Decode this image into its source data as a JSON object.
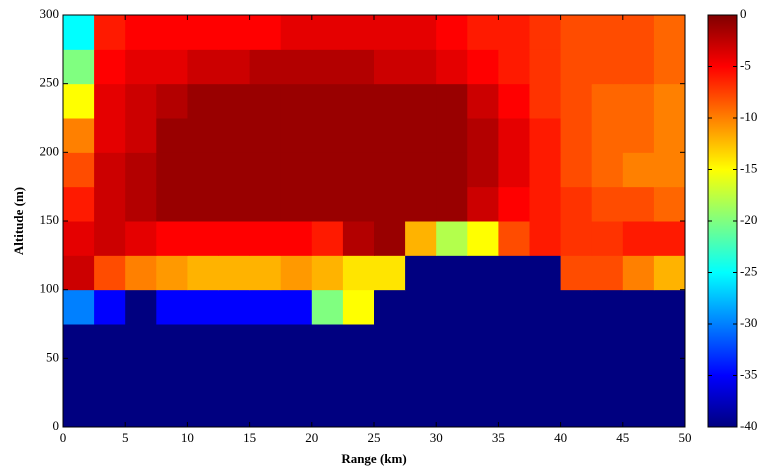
{
  "chart_data": {
    "type": "heatmap",
    "x_label": "Range (km)",
    "y_label": "Altitude (m)",
    "xlim": [
      0,
      50
    ],
    "ylim": [
      0,
      300
    ],
    "xticks": [
      0,
      5,
      10,
      15,
      20,
      25,
      30,
      35,
      40,
      45,
      50
    ],
    "yticks": [
      0,
      50,
      100,
      150,
      200,
      250,
      300
    ],
    "colormap": "jet",
    "zlim": [
      -40,
      0
    ],
    "colorbar_ticks": [
      0,
      -5,
      -10,
      -15,
      -20,
      -25,
      -30,
      -35,
      -40
    ],
    "x": [
      1.25,
      3.75,
      6.25,
      8.75,
      11.25,
      13.75,
      16.25,
      18.75,
      21.25,
      23.75,
      26.25,
      28.75,
      31.25,
      33.75,
      36.25,
      38.75,
      41.25,
      43.75,
      46.25,
      48.75
    ],
    "y": [
      12.5,
      37.5,
      62.5,
      87.5,
      112.5,
      137.5,
      162.5,
      187.5,
      212.5,
      237.5,
      262.5,
      287.5
    ],
    "z": [
      [
        -40,
        -40,
        -40,
        -40,
        -40,
        -40,
        -40,
        -40,
        -40,
        -40,
        -40,
        -40,
        -40,
        -40,
        -40,
        -40,
        -40,
        -40,
        -40,
        -40
      ],
      [
        -40,
        -40,
        -40,
        -40,
        -40,
        -40,
        -40,
        -40,
        -40,
        -40,
        -40,
        -40,
        -40,
        -40,
        -40,
        -40,
        -40,
        -40,
        -40,
        -40
      ],
      [
        -40,
        -40,
        -40,
        -40,
        -40,
        -40,
        -40,
        -40,
        -40,
        -40,
        -40,
        -40,
        -40,
        -40,
        -40,
        -40,
        -40,
        -40,
        -40,
        -40
      ],
      [
        -30,
        -35,
        -40,
        -35,
        -35,
        -35,
        -35,
        -35,
        -20,
        -15,
        -40,
        -40,
        -40,
        -40,
        -40,
        -40,
        -40,
        -40,
        -40,
        -40
      ],
      [
        -3,
        -8,
        -10,
        -11,
        -12,
        -12,
        -12,
        -11,
        -12,
        -14,
        -14,
        -40,
        -40,
        -40,
        -40,
        -40,
        -8,
        -8,
        -10,
        -12
      ],
      [
        -4,
        -3,
        -4,
        -5,
        -5,
        -5,
        -5,
        -5,
        -6,
        -2,
        -1,
        -12,
        -18,
        -15,
        -8,
        -6,
        -7,
        -7,
        -6,
        -6
      ],
      [
        -6,
        -3,
        -2,
        -1,
        -1,
        -1,
        -1,
        -1,
        -1,
        -1,
        -1,
        -1,
        -1,
        -3,
        -5,
        -6,
        -7,
        -8,
        -8,
        -9
      ],
      [
        -8,
        -3,
        -2,
        -1,
        -1,
        -1,
        -1,
        -1,
        -1,
        -1,
        -1,
        -1,
        -1,
        -2,
        -4,
        -6,
        -8,
        -9,
        -10,
        -10
      ],
      [
        -10,
        -4,
        -3,
        -1,
        -1,
        -1,
        -1,
        -1,
        -1,
        -1,
        -1,
        -1,
        -1,
        -2,
        -4,
        -6,
        -8,
        -9,
        -9,
        -10
      ],
      [
        -15,
        -4,
        -3,
        -2,
        -1,
        -1,
        -1,
        -1,
        -1,
        -1,
        -1,
        -1,
        -1,
        -3,
        -5,
        -7,
        -8,
        -9,
        -9,
        -10
      ],
      [
        -20,
        -5,
        -4,
        -4,
        -3,
        -3,
        -2,
        -2,
        -2,
        -2,
        -3,
        -3,
        -4,
        -5,
        -6,
        -7,
        -8,
        -8,
        -8,
        -9
      ],
      [
        -25,
        -6,
        -5,
        -5,
        -5,
        -5,
        -5,
        -4,
        -4,
        -4,
        -4,
        -4,
        -5,
        -6,
        -6,
        -7,
        -8,
        -8,
        -8,
        -9
      ]
    ]
  }
}
